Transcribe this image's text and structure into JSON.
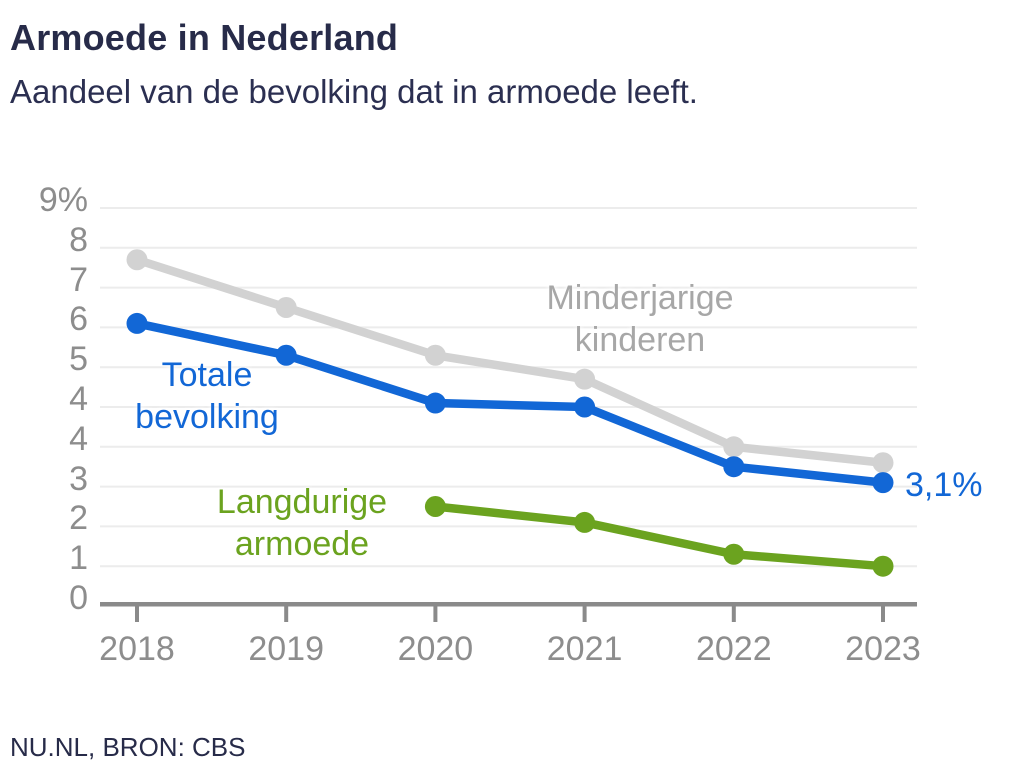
{
  "header": {
    "title": "Armoede in Nederland",
    "subtitle": "Aandeel van de bevolking dat in armoede leeft."
  },
  "footer": {
    "source": "NU.NL, BRON: CBS"
  },
  "colors": {
    "total_population_blue": "#1267d6",
    "minor_children_gray_line": "#d2d2d2",
    "minor_children_gray_text": "#a7a7a7",
    "long_term_poverty_green": "#6ba31f",
    "axis_gray": "#8a8a8a",
    "tick_text_gray": "#8d8d8d",
    "grid_gray": "#ececec",
    "heading_navy": "#272b49"
  },
  "chart_data": {
    "type": "line",
    "title": "Armoede in Nederland",
    "subtitle": "Aandeel van de bevolking dat in armoede leeft.",
    "xlabel": "",
    "ylabel": "",
    "x_tick_labels": [
      "2018",
      "2019",
      "2020",
      "2021",
      "2022",
      "2023"
    ],
    "y_tick_labels_top_to_bottom": [
      "9%",
      "8",
      "7",
      "6",
      "5",
      "4",
      "4",
      "3",
      "2",
      "1",
      "0"
    ],
    "y_axis_note_as_printed": "axis shows the digit 4 twice",
    "ylim": [
      0,
      10
    ],
    "grid": true,
    "legend_position": "inline-labels",
    "series": [
      {
        "name": "Minderjarige kinderen",
        "label_lines": [
          "Minderjarige",
          "kinderen"
        ],
        "color": "#d2d2d2",
        "values": [
          8.7,
          7.5,
          6.3,
          5.7,
          4.0,
          3.6
        ]
      },
      {
        "name": "Totale bevolking",
        "label_lines": [
          "Totale",
          "bevolking"
        ],
        "color": "#1267d6",
        "values": [
          7.1,
          6.3,
          5.1,
          5.0,
          3.5,
          3.1
        ],
        "end_label": "3,1%"
      },
      {
        "name": "Langdurige armoede",
        "label_lines": [
          "Langdurige",
          "armoede"
        ],
        "color": "#6ba31f",
        "values": [
          null,
          null,
          2.5,
          2.1,
          1.3,
          1.0
        ]
      }
    ]
  }
}
